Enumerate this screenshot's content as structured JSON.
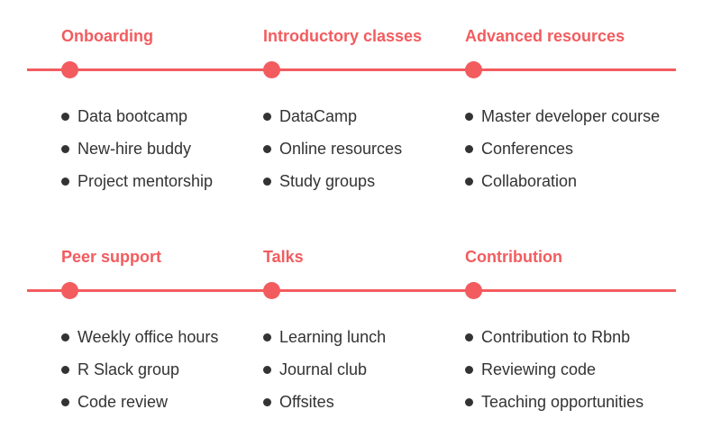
{
  "colors": {
    "accent": "#f25c5f",
    "text": "#333333",
    "background": "#ffffff"
  },
  "rows": [
    {
      "stages": [
        {
          "title": "Onboarding",
          "items": [
            "Data bootcamp",
            "New-hire buddy",
            "Project mentorship"
          ]
        },
        {
          "title": "Introductory classes",
          "items": [
            "DataCamp",
            "Online resources",
            "Study groups"
          ]
        },
        {
          "title": "Advanced resources",
          "items": [
            "Master developer course",
            "Conferences",
            "Collaboration"
          ]
        }
      ]
    },
    {
      "stages": [
        {
          "title": "Peer support",
          "items": [
            "Weekly office hours",
            "R Slack group",
            "Code review"
          ]
        },
        {
          "title": "Talks",
          "items": [
            "Learning lunch",
            "Journal club",
            "Offsites"
          ]
        },
        {
          "title": "Contribution",
          "items": [
            "Contribution to Rbnb",
            "Reviewing code",
            "Teaching opportunities"
          ]
        }
      ]
    }
  ]
}
